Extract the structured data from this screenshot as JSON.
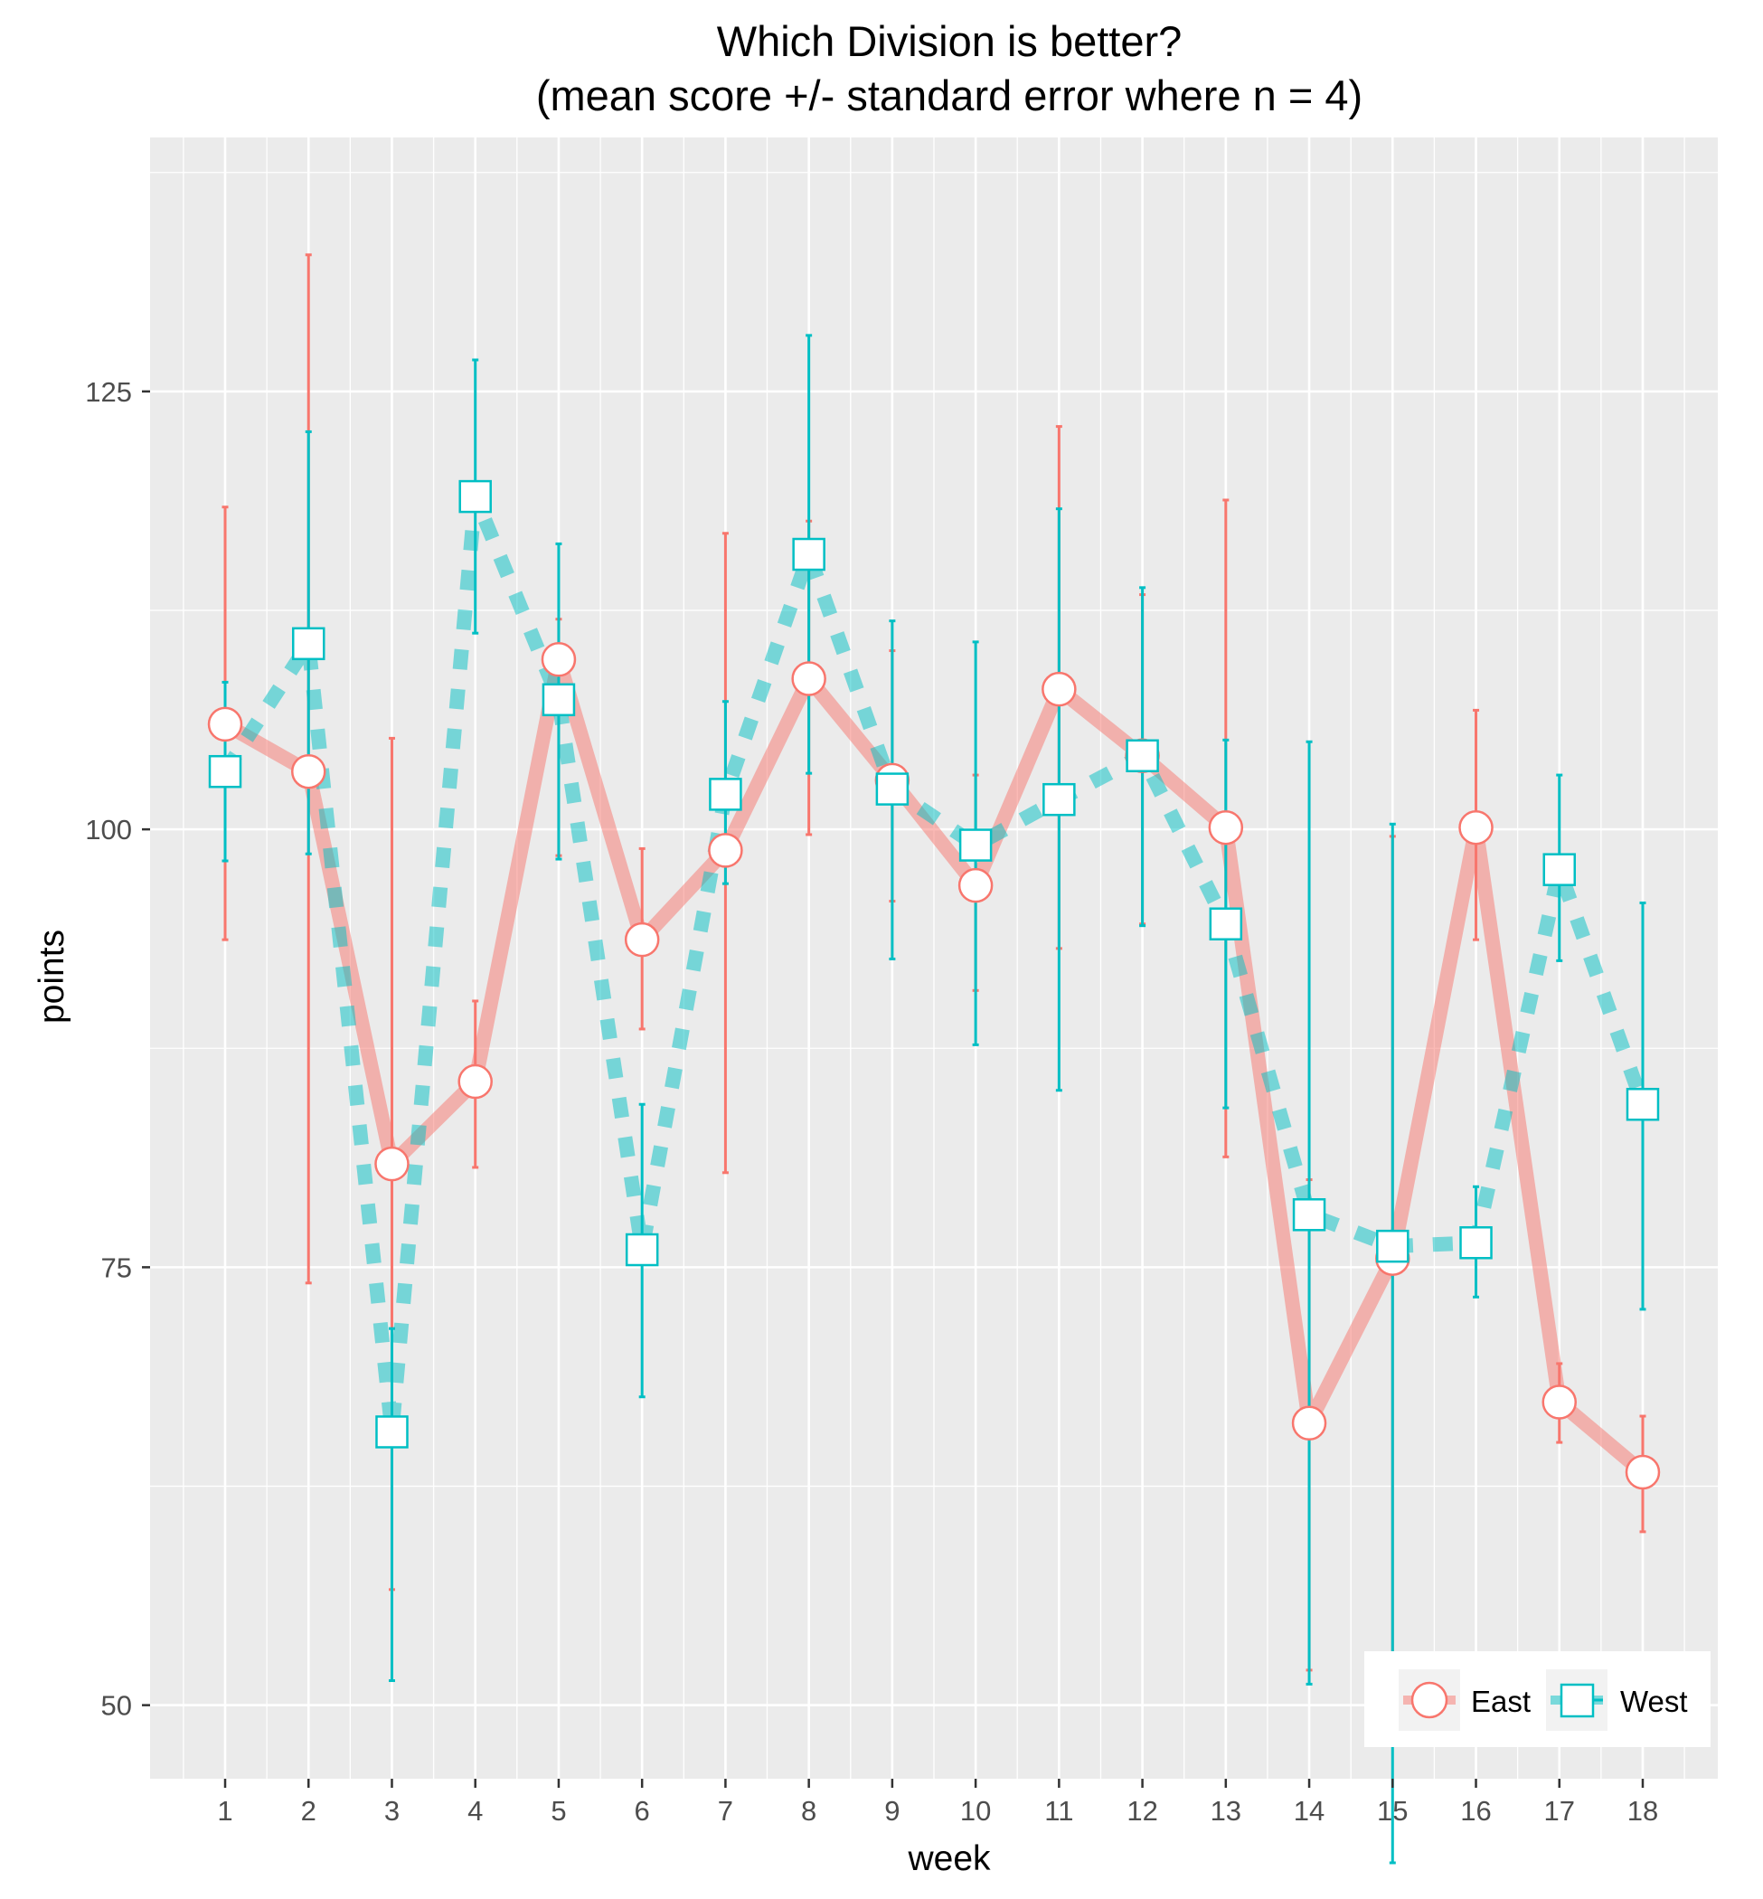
{
  "chart_data": {
    "type": "line",
    "title": "Which Division is better?",
    "subtitle": "(mean score +/- standard error   where n = 4)",
    "xlabel": "week",
    "ylabel": "points",
    "x": [
      1,
      2,
      3,
      4,
      5,
      6,
      7,
      8,
      9,
      10,
      11,
      12,
      13,
      14,
      15,
      16,
      17,
      18
    ],
    "x_tick_labels": [
      "1",
      "2",
      "3",
      "4",
      "5",
      "6",
      "7",
      "8",
      "9",
      "10",
      "11",
      "12",
      "13",
      "14",
      "15",
      "16",
      "17",
      "18"
    ],
    "y_ticks": [
      50,
      75,
      100,
      125
    ],
    "y_tick_labels": [
      "50",
      "75",
      "100",
      "125"
    ],
    "ylim": [
      45.8,
      139.5
    ],
    "xlim": [
      0.1,
      18.9
    ],
    "grid": true,
    "legend_position": "bottom-right (inside)",
    "series": [
      {
        "name": "East",
        "color": "#F8766D",
        "line_style": "solid",
        "marker": "circle",
        "values": [
          106.0,
          103.3,
          80.9,
          85.6,
          109.7,
          93.7,
          98.8,
          108.6,
          102.8,
          96.8,
          108.0,
          104.2,
          100.1,
          66.1,
          75.5,
          100.1,
          67.3,
          63.3
        ],
        "err_low": [
          93.7,
          74.1,
          56.6,
          80.7,
          98.5,
          88.6,
          80.4,
          99.7,
          95.9,
          90.8,
          93.2,
          94.6,
          81.3,
          52.0,
          50.5,
          93.7,
          65.0,
          59.9
        ],
        "err_high": [
          118.4,
          132.8,
          105.2,
          90.2,
          112.0,
          98.9,
          116.9,
          117.6,
          110.2,
          103.1,
          123.0,
          113.4,
          118.8,
          80.0,
          99.6,
          106.8,
          69.5,
          66.5
        ]
      },
      {
        "name": "West",
        "color": "#00BFC4",
        "line_style": "dashed",
        "marker": "square",
        "values": [
          103.3,
          110.6,
          65.6,
          119.0,
          107.4,
          76.0,
          102.0,
          115.7,
          102.3,
          99.1,
          101.7,
          104.2,
          94.6,
          78.0,
          76.2,
          76.4,
          97.7,
          84.3
        ],
        "err_low": [
          98.2,
          98.6,
          51.4,
          111.2,
          98.3,
          67.6,
          96.9,
          103.2,
          92.6,
          87.7,
          85.1,
          94.5,
          84.1,
          51.2,
          41.0,
          73.3,
          92.5,
          72.6
        ],
        "err_high": [
          108.4,
          122.7,
          71.5,
          126.8,
          116.3,
          84.3,
          107.3,
          128.2,
          111.9,
          110.7,
          118.3,
          113.8,
          105.1,
          105.0,
          100.3,
          79.6,
          103.1,
          95.8
        ]
      }
    ]
  },
  "legend": {
    "items": [
      {
        "label": "East"
      },
      {
        "label": "West"
      }
    ]
  }
}
